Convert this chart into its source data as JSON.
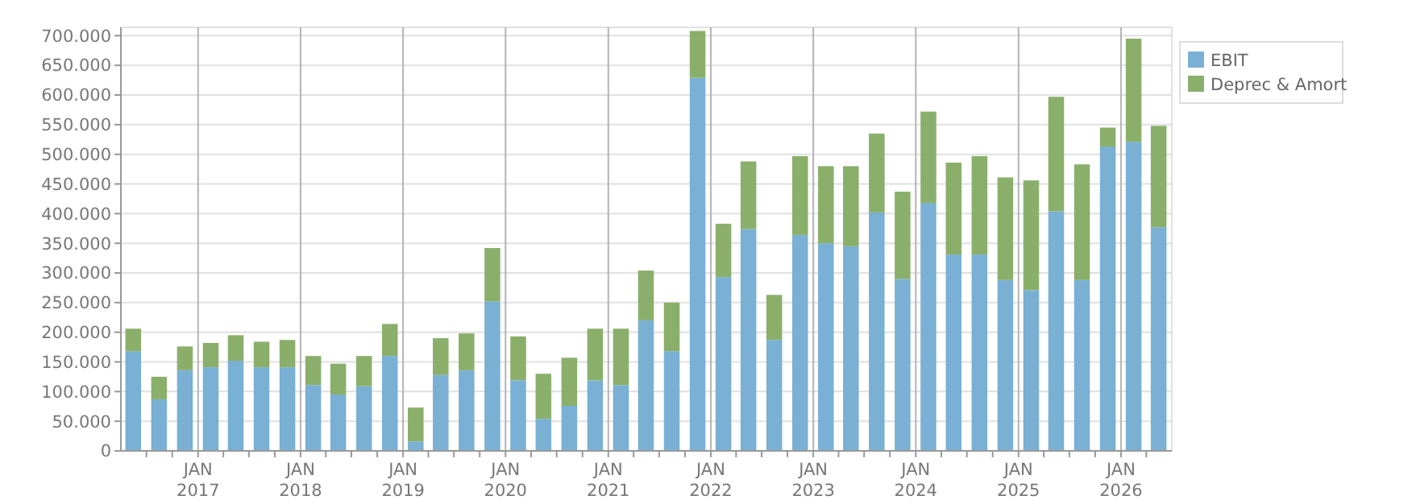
{
  "chart_data": {
    "type": "bar",
    "stacked": true,
    "x": [
      "2016-05-15",
      "2016-08-15",
      "2016-11-15",
      "2017-02-15",
      "2017-05-15",
      "2017-08-15",
      "2017-11-15",
      "2018-02-15",
      "2018-05-15",
      "2018-08-15",
      "2018-11-15",
      "2019-02-15",
      "2019-05-15",
      "2019-08-15",
      "2019-11-15",
      "2020-02-15",
      "2020-05-15",
      "2020-08-15",
      "2020-11-15",
      "2021-02-15",
      "2021-05-15",
      "2021-08-15",
      "2021-11-15",
      "2022-02-15",
      "2022-05-15",
      "2022-08-15",
      "2022-11-15",
      "2023-02-15",
      "2023-05-15",
      "2023-08-15",
      "2023-11-15",
      "2024-02-15",
      "2024-05-15",
      "2024-08-15",
      "2024-11-15",
      "2025-02-15",
      "2025-05-15",
      "2025-08-15",
      "2025-11-15",
      "2026-02-15",
      "2026-05-15"
    ],
    "series": [
      {
        "name": "EBIT",
        "color": "#7ab0d4",
        "values": [
          168000,
          87000,
          136000,
          141000,
          152000,
          141000,
          141000,
          111000,
          95000,
          109000,
          160000,
          16000,
          128000,
          136000,
          252000,
          119000,
          54000,
          76000,
          119000,
          111000,
          220000,
          168000,
          629000,
          293000,
          374000,
          187000,
          364000,
          350000,
          345000,
          402000,
          290000,
          418000,
          331000,
          331000,
          288000,
          271000,
          404000,
          288000,
          513000,
          521000,
          377000
        ]
      },
      {
        "name": "Deprec & Amort",
        "color": "#8aaf6b",
        "values": [
          38000,
          38000,
          40000,
          41000,
          43000,
          43000,
          46000,
          49000,
          52000,
          51000,
          54000,
          57000,
          62000,
          62000,
          90000,
          74000,
          76000,
          81000,
          87000,
          95000,
          84000,
          82000,
          79000,
          90000,
          114000,
          76000,
          133000,
          130000,
          135000,
          133000,
          147000,
          154000,
          155000,
          166000,
          173000,
          185000,
          193000,
          195000,
          32000,
          174000,
          171000
        ]
      }
    ],
    "xlim": [
      "2016-04-01",
      "2026-07-01"
    ],
    "xticks": [
      {
        "value": "2016-07-01",
        "label": null
      },
      {
        "value": "2016-10-01",
        "label": null
      },
      {
        "value": "2017-01-01",
        "label": "JAN\n2017"
      },
      {
        "value": "2017-04-01",
        "label": null
      },
      {
        "value": "2017-07-01",
        "label": null
      },
      {
        "value": "2017-10-01",
        "label": null
      },
      {
        "value": "2018-01-01",
        "label": "JAN\n2018"
      },
      {
        "value": "2018-04-01",
        "label": null
      },
      {
        "value": "2018-07-01",
        "label": null
      },
      {
        "value": "2018-10-01",
        "label": null
      },
      {
        "value": "2019-01-01",
        "label": "JAN\n2019"
      },
      {
        "value": "2019-04-01",
        "label": null
      },
      {
        "value": "2019-07-01",
        "label": null
      },
      {
        "value": "2019-10-01",
        "label": null
      },
      {
        "value": "2020-01-01",
        "label": "JAN\n2020"
      },
      {
        "value": "2020-04-01",
        "label": null
      },
      {
        "value": "2020-07-01",
        "label": null
      },
      {
        "value": "2020-10-01",
        "label": null
      },
      {
        "value": "2021-01-01",
        "label": "JAN\n2021"
      },
      {
        "value": "2021-04-01",
        "label": null
      },
      {
        "value": "2021-07-01",
        "label": null
      },
      {
        "value": "2021-10-01",
        "label": null
      },
      {
        "value": "2022-01-01",
        "label": "JAN\n2022"
      },
      {
        "value": "2022-04-01",
        "label": null
      },
      {
        "value": "2022-07-01",
        "label": null
      },
      {
        "value": "2022-10-01",
        "label": null
      },
      {
        "value": "2023-01-01",
        "label": "JAN\n2023"
      },
      {
        "value": "2023-04-01",
        "label": null
      },
      {
        "value": "2023-07-01",
        "label": null
      },
      {
        "value": "2023-10-01",
        "label": null
      },
      {
        "value": "2024-01-01",
        "label": "JAN\n2024"
      },
      {
        "value": "2024-04-01",
        "label": null
      },
      {
        "value": "2024-07-01",
        "label": null
      },
      {
        "value": "2024-10-01",
        "label": null
      },
      {
        "value": "2025-01-01",
        "label": "JAN\n2025"
      },
      {
        "value": "2025-04-01",
        "label": null
      },
      {
        "value": "2025-07-01",
        "label": null
      },
      {
        "value": "2025-10-01",
        "label": null
      },
      {
        "value": "2026-01-01",
        "label": "JAN\n2026"
      },
      {
        "value": "2026-04-01",
        "label": null
      }
    ],
    "ylim": [
      0,
      714000
    ],
    "yticks": [
      {
        "value": 0,
        "label": "0"
      },
      {
        "value": 50000,
        "label": "50.000"
      },
      {
        "value": 100000,
        "label": "100.000"
      },
      {
        "value": 150000,
        "label": "150.000"
      },
      {
        "value": 200000,
        "label": "200.000"
      },
      {
        "value": 250000,
        "label": "250.000"
      },
      {
        "value": 300000,
        "label": "300.000"
      },
      {
        "value": 350000,
        "label": "350.000"
      },
      {
        "value": 400000,
        "label": "400.000"
      },
      {
        "value": 450000,
        "label": "450.000"
      },
      {
        "value": 500000,
        "label": "500.000"
      },
      {
        "value": 550000,
        "label": "550.000"
      },
      {
        "value": 600000,
        "label": "600.000"
      },
      {
        "value": 650000,
        "label": "650.000"
      },
      {
        "value": 700000,
        "label": "700.000"
      }
    ],
    "grid": true,
    "legend": "top right"
  }
}
